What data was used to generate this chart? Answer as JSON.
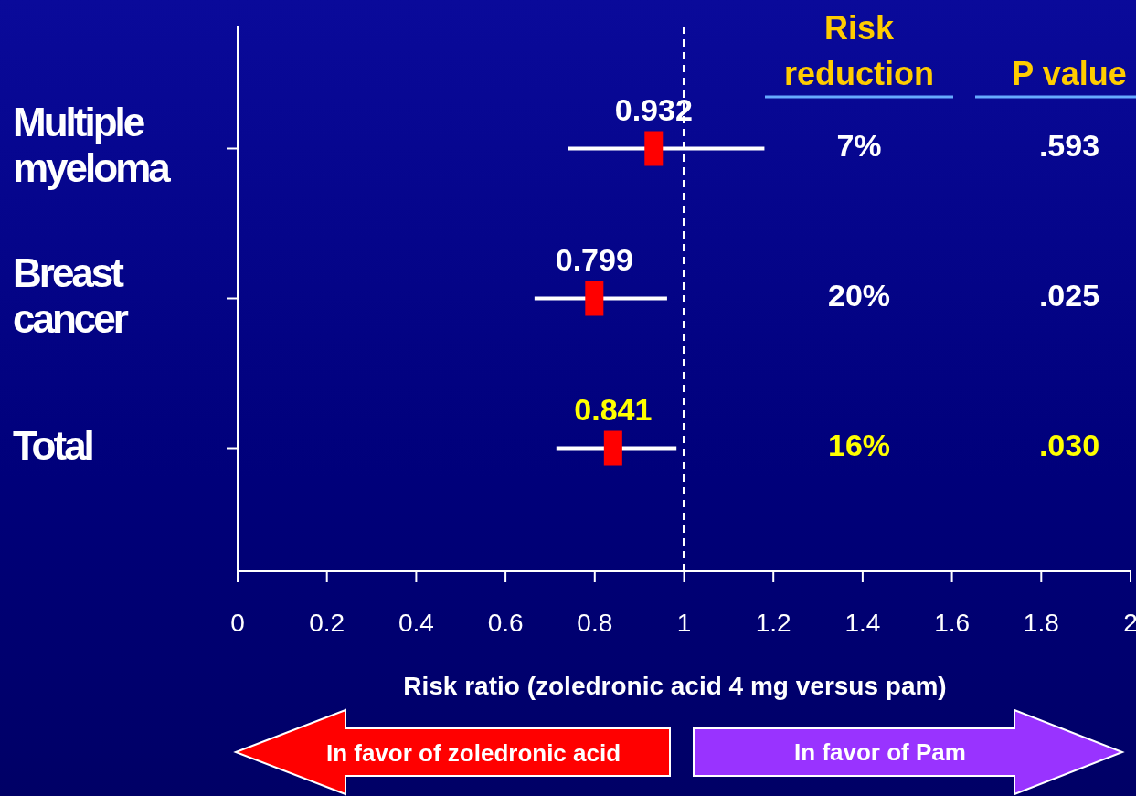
{
  "chart_data": {
    "type": "scatter",
    "orientation": "horizontal",
    "categories": [
      "Multiple myeloma",
      "Breast cancer",
      "Total"
    ],
    "values": [
      0.932,
      0.799,
      0.841
    ],
    "errors": [
      [
        0.74,
        1.18
      ],
      [
        0.665,
        0.962
      ],
      [
        0.714,
        0.983
      ]
    ],
    "color": "#ff0000",
    "marker": "square",
    "data_labels": true,
    "xlim": [
      0,
      2
    ],
    "xticks": [
      0,
      0.2,
      0.4,
      0.6,
      0.8,
      1,
      1.2,
      1.4,
      1.6,
      1.8,
      2
    ],
    "xlabel": "Risk ratio (zoledronic acid 4 mg versus pam)",
    "ref_lines": [
      {
        "axis": "x",
        "value": 1,
        "color": "#ffffff",
        "line_style": "dashed"
      }
    ],
    "grid": false,
    "annotations": [
      "Risk reduction",
      "7%",
      "20%",
      "16%",
      "P value",
      ".593",
      ".025",
      ".030",
      "In favor of zoledronic acid",
      "In favor of Pam"
    ]
  }
}
